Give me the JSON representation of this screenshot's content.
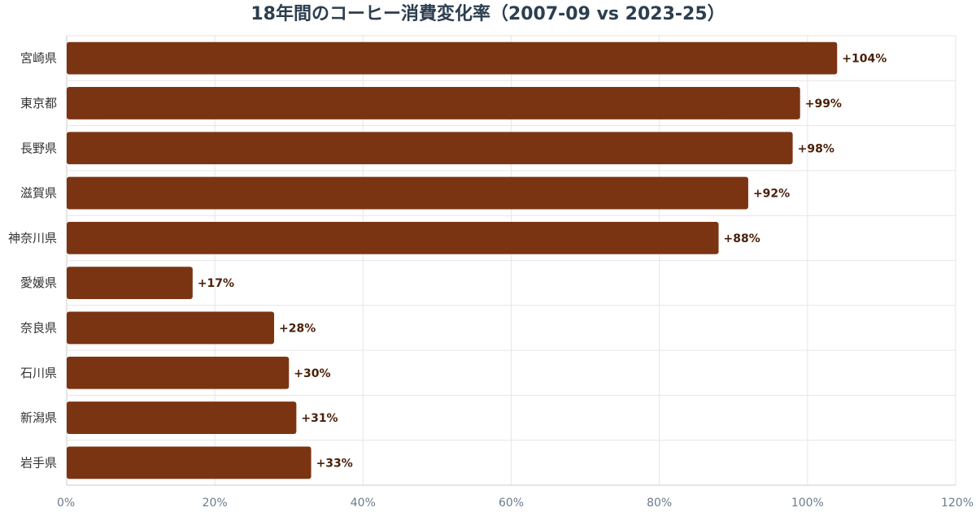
{
  "chart_data": {
    "type": "bar",
    "orientation": "horizontal",
    "title": "18年間のコーヒー消費変化率（2007-09 vs 2023-25）",
    "xlabel": "",
    "ylabel": "",
    "categories": [
      "宮崎県",
      "東京都",
      "長野県",
      "滋賀県",
      "神奈川県",
      "愛媛県",
      "奈良県",
      "石川県",
      "新潟県",
      "岩手県"
    ],
    "values": [
      104,
      99,
      98,
      92,
      88,
      17,
      28,
      30,
      31,
      33
    ],
    "value_labels": [
      "+104%",
      "+99%",
      "+98%",
      "+92%",
      "+88%",
      "+17%",
      "+28%",
      "+30%",
      "+31%",
      "+33%"
    ],
    "xlim": [
      0,
      120
    ],
    "xticks": [
      0,
      20,
      40,
      60,
      80,
      100,
      120
    ],
    "xtick_labels": [
      "0%",
      "20%",
      "40%",
      "60%",
      "80%",
      "100%",
      "120%"
    ],
    "grid": true,
    "bar_color": "#7b3412"
  }
}
